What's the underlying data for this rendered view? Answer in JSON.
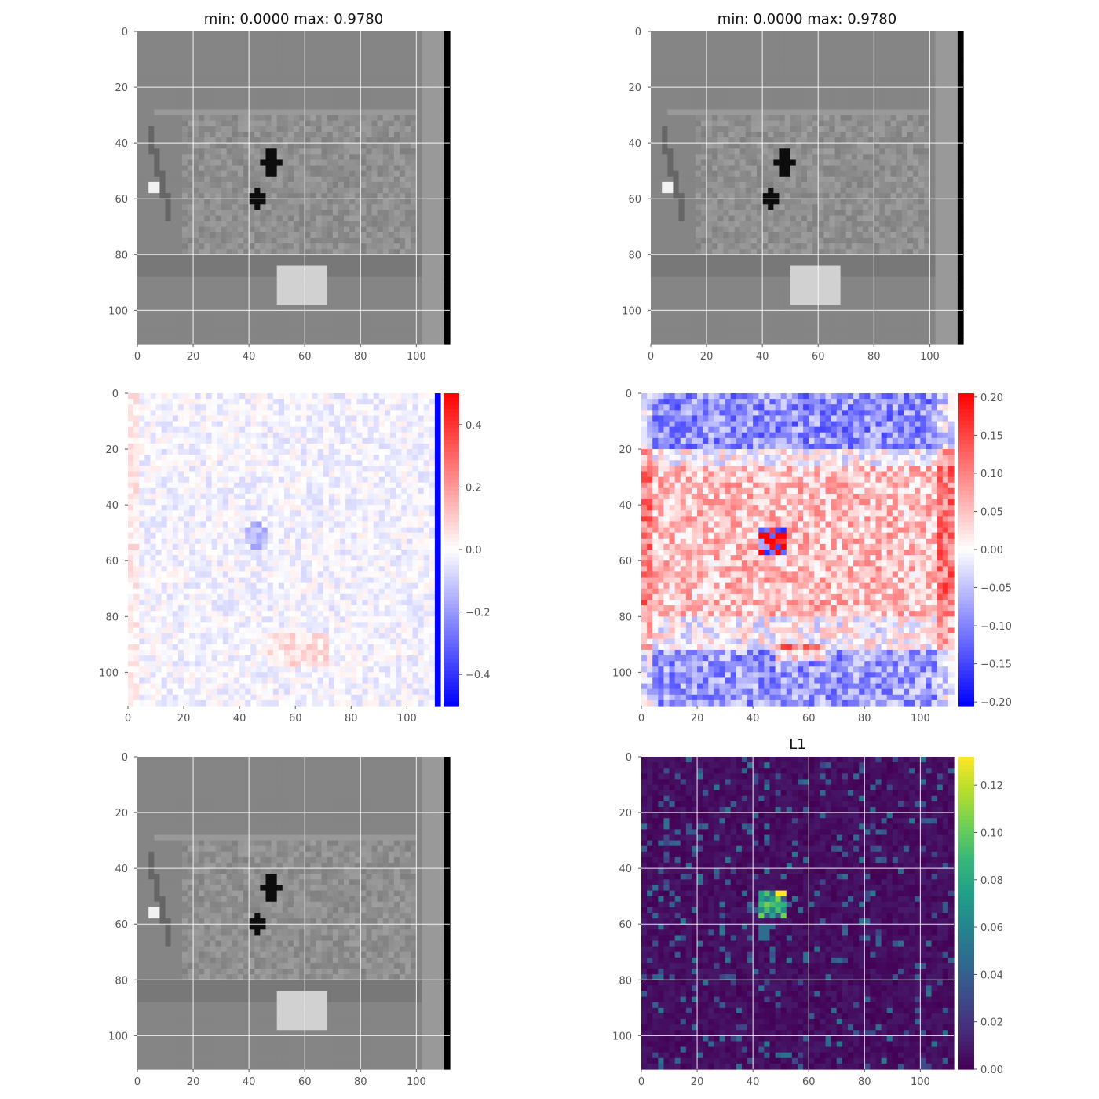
{
  "chart_data": [
    {
      "type": "heatmap",
      "panel": "top-left",
      "title": "min: 0.0000 max: 0.9780",
      "colormap": "gray",
      "x_ticks": [
        0,
        20,
        40,
        60,
        80,
        100
      ],
      "y_ticks": [
        0,
        20,
        40,
        60,
        80,
        100
      ],
      "xlim": [
        0,
        112
      ],
      "ylim": [
        112,
        0
      ],
      "value_range": [
        0.0,
        0.978
      ],
      "grid": true
    },
    {
      "type": "heatmap",
      "panel": "top-right",
      "title": "min: 0.0000 max: 0.9780",
      "colormap": "gray",
      "x_ticks": [
        0,
        20,
        40,
        60,
        80,
        100
      ],
      "y_ticks": [
        0,
        20,
        40,
        60,
        80,
        100
      ],
      "xlim": [
        0,
        112
      ],
      "ylim": [
        112,
        0
      ],
      "value_range": [
        0.0,
        0.978
      ],
      "grid": true
    },
    {
      "type": "heatmap",
      "panel": "middle-left",
      "title": "",
      "colormap": "bwr",
      "x_ticks": [
        0,
        20,
        40,
        60,
        80,
        100
      ],
      "y_ticks": [
        0,
        20,
        40,
        60,
        80,
        100
      ],
      "xlim": [
        0,
        112
      ],
      "ylim": [
        112,
        0
      ],
      "colorbar": {
        "min": -0.5,
        "max": 0.5,
        "ticks": [
          0.4,
          0.2,
          0.0,
          -0.2,
          -0.4
        ],
        "tick_labels": [
          "0.4",
          "0.2",
          "0.0",
          "−0.2",
          "−0.4"
        ]
      },
      "grid": false
    },
    {
      "type": "heatmap",
      "panel": "middle-right",
      "title": "",
      "colormap": "bwr",
      "x_ticks": [
        0,
        20,
        40,
        60,
        80,
        100
      ],
      "y_ticks": [
        0,
        20,
        40,
        60,
        80,
        100
      ],
      "xlim": [
        0,
        112
      ],
      "ylim": [
        112,
        0
      ],
      "colorbar": {
        "min": -0.205,
        "max": 0.205,
        "ticks": [
          0.2,
          0.15,
          0.1,
          0.05,
          0.0,
          -0.05,
          -0.1,
          -0.15,
          -0.2
        ],
        "tick_labels": [
          "0.20",
          "0.15",
          "0.10",
          "0.05",
          "0.00",
          "−0.05",
          "−0.10",
          "−0.15",
          "−0.20"
        ]
      },
      "grid": false
    },
    {
      "type": "heatmap",
      "panel": "bottom-left",
      "title": "",
      "colormap": "gray",
      "x_ticks": [
        0,
        20,
        40,
        60,
        80,
        100
      ],
      "y_ticks": [
        0,
        20,
        40,
        60,
        80,
        100
      ],
      "xlim": [
        0,
        112
      ],
      "ylim": [
        112,
        0
      ],
      "grid": true
    },
    {
      "type": "heatmap",
      "panel": "bottom-right",
      "title": "L1",
      "colormap": "viridis",
      "x_ticks": [
        0,
        20,
        40,
        60,
        80,
        100
      ],
      "y_ticks": [
        0,
        20,
        40,
        60,
        80,
        100
      ],
      "xlim": [
        0,
        112
      ],
      "ylim": [
        112,
        0
      ],
      "colorbar": {
        "min": 0.0,
        "max": 0.132,
        "ticks": [
          0.12,
          0.1,
          0.08,
          0.06,
          0.04,
          0.02,
          0.0
        ],
        "tick_labels": [
          "0.12",
          "0.10",
          "0.08",
          "0.06",
          "0.04",
          "0.02",
          "0.00"
        ]
      },
      "grid": true
    }
  ]
}
